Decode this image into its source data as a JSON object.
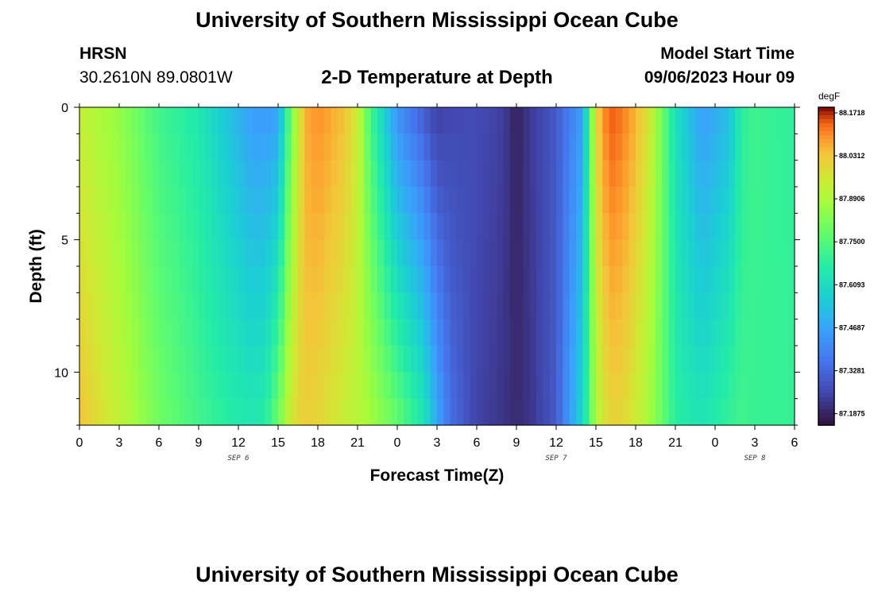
{
  "header": {
    "title": "University of Southern Mississippi Ocean Cube",
    "station": "HRSN",
    "coords": "30.2610N  89.0801W",
    "subtitle": "2-D Temperature at Depth",
    "model_start_label": "Model Start Time",
    "model_start_value": "09/06/2023 Hour 09"
  },
  "footer": {
    "title": "University of Southern Mississippi Ocean Cube"
  },
  "chart_data": {
    "type": "heatmap",
    "xlabel": "Forecast Time(Z)",
    "ylabel": "Depth (ft)",
    "x_ticks": [
      "0",
      "3",
      "6",
      "9",
      "12",
      "15",
      "18",
      "21",
      "0",
      "3",
      "6",
      "9",
      "12",
      "15",
      "18",
      "21",
      "0",
      "3",
      "6"
    ],
    "x_range_hours": [
      0,
      54
    ],
    "date_labels": [
      {
        "label": "SEP 6",
        "hour": 12
      },
      {
        "label": "SEP 7",
        "hour": 36
      },
      {
        "label": "SEP 8",
        "hour": 51
      }
    ],
    "y_ticks": [
      0,
      5,
      10
    ],
    "ylim": [
      0,
      12
    ],
    "y_inverted": true,
    "colorbar": {
      "units": "degF",
      "ticks": [
        "88.1718",
        "88.0312",
        "87.8906",
        "87.7500",
        "87.6093",
        "87.4687",
        "87.3281",
        "87.1875"
      ],
      "min": 87.15,
      "max": 88.19
    },
    "profile": {
      "hours": [
        0,
        3,
        6,
        9,
        11,
        13,
        14,
        15,
        16,
        17,
        18,
        20,
        21,
        22,
        24,
        26,
        27,
        28,
        30,
        32,
        33,
        34,
        36,
        38,
        39,
        40,
        41,
        42,
        43,
        44,
        45,
        47,
        49,
        50,
        51,
        52,
        54
      ],
      "surface": [
        87.93,
        87.85,
        87.72,
        87.65,
        87.55,
        87.45,
        87.44,
        87.46,
        87.8,
        88.06,
        88.1,
        88.04,
        87.95,
        87.72,
        87.42,
        87.3,
        87.24,
        87.26,
        87.27,
        87.24,
        87.18,
        87.23,
        87.3,
        87.45,
        88.0,
        88.15,
        88.12,
        88.06,
        87.97,
        87.8,
        87.62,
        87.45,
        87.52,
        87.68,
        87.72,
        87.7,
        87.69
      ],
      "bottom": [
        88.04,
        87.93,
        87.8,
        87.72,
        87.68,
        87.65,
        87.67,
        87.8,
        87.97,
        88.02,
        88.0,
        87.94,
        87.91,
        87.88,
        87.78,
        87.65,
        87.48,
        87.35,
        87.25,
        87.22,
        87.2,
        87.22,
        87.3,
        87.6,
        87.9,
        88.0,
        88.0,
        87.95,
        87.88,
        87.78,
        87.68,
        87.64,
        87.7,
        87.72,
        87.7,
        87.7,
        87.7
      ]
    }
  }
}
